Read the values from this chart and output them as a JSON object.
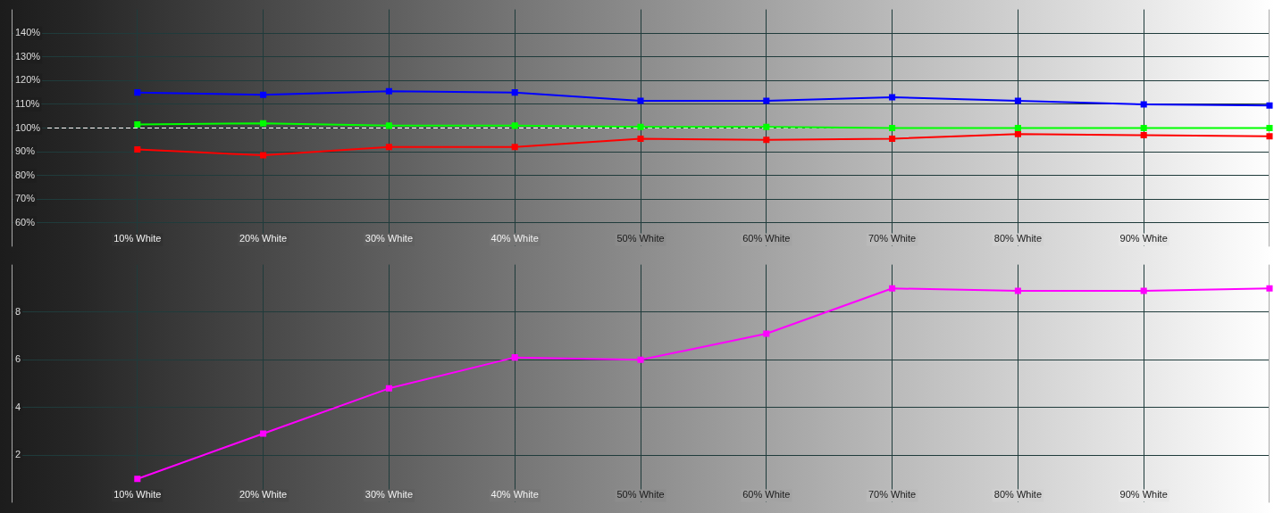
{
  "chart_data": [
    {
      "type": "line",
      "x": [
        10,
        20,
        30,
        40,
        50,
        60,
        70,
        80,
        90,
        100
      ],
      "xlim": [
        0,
        100
      ],
      "xticks": [
        {
          "value": 10,
          "label": "10% White"
        },
        {
          "value": 20,
          "label": "20% White"
        },
        {
          "value": 30,
          "label": "30% White"
        },
        {
          "value": 40,
          "label": "40% White"
        },
        {
          "value": 50,
          "label": "50% White"
        },
        {
          "value": 60,
          "label": "60% White"
        },
        {
          "value": 70,
          "label": "70% White"
        },
        {
          "value": 80,
          "label": "80% White"
        },
        {
          "value": 90,
          "label": "90% White"
        }
      ],
      "ylim": [
        50,
        150
      ],
      "yticks": [
        {
          "value": 60,
          "label": "60%"
        },
        {
          "value": 70,
          "label": "70%"
        },
        {
          "value": 80,
          "label": "80%"
        },
        {
          "value": 90,
          "label": "90%"
        },
        {
          "value": 100,
          "label": "100%"
        },
        {
          "value": 110,
          "label": "110%"
        },
        {
          "value": 120,
          "label": "120%"
        },
        {
          "value": 130,
          "label": "130%"
        },
        {
          "value": 140,
          "label": "140%"
        }
      ],
      "series": [
        {
          "color": "#0000ff",
          "values": [
            115,
            114,
            115.5,
            115,
            111.5,
            111.5,
            113,
            111.5,
            110,
            109.5
          ]
        },
        {
          "color": "#00ff00",
          "values": [
            101.5,
            102,
            101,
            101,
            100.5,
            100.5,
            100,
            100,
            100,
            100
          ]
        },
        {
          "color": "#ff0000",
          "values": [
            91,
            88.5,
            92,
            92,
            95.5,
            95,
            95.5,
            97.5,
            97,
            96.5
          ]
        }
      ],
      "ref_lines": [
        {
          "axis": "y",
          "value": 100,
          "color": "#ffffff",
          "line_style": "dashed"
        }
      ],
      "grid": true,
      "marker": "square",
      "line_style": "solid"
    },
    {
      "type": "line",
      "x": [
        10,
        20,
        30,
        40,
        50,
        60,
        70,
        80,
        90,
        100
      ],
      "xlim": [
        0,
        100
      ],
      "xticks": [
        {
          "value": 10,
          "label": "10% White"
        },
        {
          "value": 20,
          "label": "20% White"
        },
        {
          "value": 30,
          "label": "30% White"
        },
        {
          "value": 40,
          "label": "40% White"
        },
        {
          "value": 50,
          "label": "50% White"
        },
        {
          "value": 60,
          "label": "60% White"
        },
        {
          "value": 70,
          "label": "70% White"
        },
        {
          "value": 80,
          "label": "80% White"
        },
        {
          "value": 90,
          "label": "90% White"
        }
      ],
      "ylim": [
        0,
        10
      ],
      "yticks": [
        2,
        4,
        6,
        8
      ],
      "series": [
        {
          "color": "#ff00ff",
          "values": [
            1.0,
            2.9,
            4.8,
            6.1,
            6.0,
            7.1,
            9.0,
            8.9,
            8.9,
            9.0
          ]
        }
      ],
      "grid": true,
      "marker": "square",
      "line_style": "solid"
    }
  ]
}
